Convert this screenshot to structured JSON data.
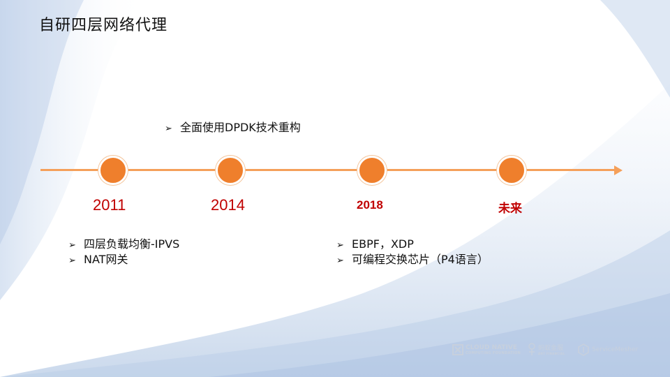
{
  "slide": {
    "title": "自研四层网络代理",
    "timeline": {
      "milestones": [
        {
          "year": "2011"
        },
        {
          "year": "2014"
        },
        {
          "year": "2018"
        },
        {
          "year": "未来"
        }
      ]
    },
    "bullet_marker": "➢",
    "top_notes": [
      "全面使用DPDK技术重构"
    ],
    "notes_2011": [
      "四层负载均衡-IPVS",
      "NAT网关"
    ],
    "notes_2018": [
      "EBPF，XDP",
      "可编程交换芯片（P4语言）"
    ]
  },
  "footer": {
    "cncf_line1": "CLOUD NATIVE",
    "cncf_line2": "COMPUTING FOUNDATION",
    "ant_text": "蚂蚁金服",
    "ant_sub": "ANT FINANCIAL",
    "servicemesher": "ServiceMesher"
  },
  "colors": {
    "dot": "#ef7f2c",
    "line": "#f5a05a",
    "year": "#c00000",
    "wave": "#c9d8ec"
  },
  "icons": [
    "bullet-arrow-icon",
    "cncf-logo-icon",
    "ant-financial-logo-icon",
    "servicemesher-logo-icon"
  ]
}
